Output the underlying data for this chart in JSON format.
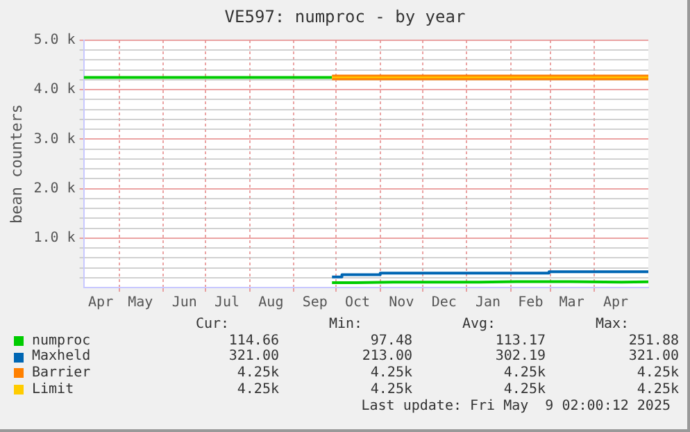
{
  "chart_data": {
    "type": "line",
    "title": "VE597: numproc - by year",
    "ylabel": "bean counters",
    "xlim": [
      "2024-04-06",
      "2025-05-09"
    ],
    "xticks": [
      {
        "value": "2024-04-18",
        "label": "Apr"
      },
      {
        "value": "2024-05-01",
        "label": null
      },
      {
        "value": "2024-05-16",
        "label": "May"
      },
      {
        "value": "2024-06-01",
        "label": null
      },
      {
        "value": "2024-06-16",
        "label": "Jun"
      },
      {
        "value": "2024-07-01",
        "label": null
      },
      {
        "value": "2024-07-16",
        "label": "Jul"
      },
      {
        "value": "2024-08-01",
        "label": null
      },
      {
        "value": "2024-08-16",
        "label": "Aug"
      },
      {
        "value": "2024-09-01",
        "label": null
      },
      {
        "value": "2024-09-16",
        "label": "Sep"
      },
      {
        "value": "2024-10-01",
        "label": null
      },
      {
        "value": "2024-10-16",
        "label": "Oct"
      },
      {
        "value": "2024-11-01",
        "label": null
      },
      {
        "value": "2024-11-16",
        "label": "Nov"
      },
      {
        "value": "2024-12-01",
        "label": null
      },
      {
        "value": "2024-12-16",
        "label": "Dec"
      },
      {
        "value": "2025-01-01",
        "label": null
      },
      {
        "value": "2025-01-16",
        "label": "Jan"
      },
      {
        "value": "2025-02-01",
        "label": null
      },
      {
        "value": "2025-02-15",
        "label": "Feb"
      },
      {
        "value": "2025-03-01",
        "label": null
      },
      {
        "value": "2025-03-16",
        "label": "Mar"
      },
      {
        "value": "2025-04-01",
        "label": null
      },
      {
        "value": "2025-04-16",
        "label": "Apr"
      }
    ],
    "ylim": [
      0,
      5000
    ],
    "yticks": [
      {
        "value": 200,
        "label": null
      },
      {
        "value": 400,
        "label": null
      },
      {
        "value": 600,
        "label": null
      },
      {
        "value": 800,
        "label": null
      },
      {
        "value": 1000,
        "label": "1.0 k"
      },
      {
        "value": 1200,
        "label": null
      },
      {
        "value": 1400,
        "label": null
      },
      {
        "value": 1600,
        "label": null
      },
      {
        "value": 1800,
        "label": null
      },
      {
        "value": 2000,
        "label": "2.0 k"
      },
      {
        "value": 2200,
        "label": null
      },
      {
        "value": 2400,
        "label": null
      },
      {
        "value": 2600,
        "label": null
      },
      {
        "value": 2800,
        "label": null
      },
      {
        "value": 3000,
        "label": "3.0 k"
      },
      {
        "value": 3200,
        "label": null
      },
      {
        "value": 3400,
        "label": null
      },
      {
        "value": 3600,
        "label": null
      },
      {
        "value": 3800,
        "label": null
      },
      {
        "value": 4000,
        "label": "4.0 k"
      },
      {
        "value": 4200,
        "label": null
      },
      {
        "value": 4400,
        "label": null
      },
      {
        "value": 4600,
        "label": null
      },
      {
        "value": 4800,
        "label": null
      },
      {
        "value": 5000,
        "label": "5.0 k"
      }
    ],
    "grid": true,
    "legend": "bottom",
    "series": [
      {
        "color": "#00cc00",
        "x": [
          "2024-04-06",
          "2024-09-28"
        ],
        "values": [
          4250,
          4250
        ]
      },
      {
        "name": "numproc",
        "color": "#00cc00",
        "x": [
          "2024-09-28",
          "2024-10-15",
          "2024-11-10",
          "2024-12-20",
          "2025-01-10",
          "2025-02-05",
          "2025-03-15",
          "2025-04-20",
          "2025-05-09"
        ],
        "values": [
          100,
          100,
          110,
          110,
          110,
          120,
          120,
          110,
          114.66
        ]
      },
      {
        "name": "Maxheld",
        "color": "#0066b3",
        "type": "step",
        "x": [
          "2024-09-28",
          "2024-10-05",
          "2024-11-01",
          "2025-02-28",
          "2025-05-09"
        ],
        "values": [
          213,
          260,
          290,
          321,
          321
        ]
      },
      {
        "name": "Barrier",
        "color": "#ff8000",
        "x": [
          "2024-09-28",
          "2025-05-09"
        ],
        "values": [
          4250,
          4250
        ]
      },
      {
        "name": "Limit",
        "color": "#ffcc00",
        "x": [
          "2024-09-28",
          "2025-05-09"
        ],
        "values": [
          4250,
          4250
        ]
      }
    ],
    "annotations": [
      "Cur:",
      "Min:",
      "Avg:",
      "Max:",
      "114.66",
      "97.48",
      "113.17",
      "251.88",
      "321.00",
      "213.00",
      "302.19",
      "321.00",
      "4.25k",
      "4.25k",
      "4.25k",
      "4.25k",
      "4.25k",
      "4.25k",
      "4.25k",
      "4.25k",
      "Last update: Fri May  9 02:00:12 2025"
    ]
  }
}
